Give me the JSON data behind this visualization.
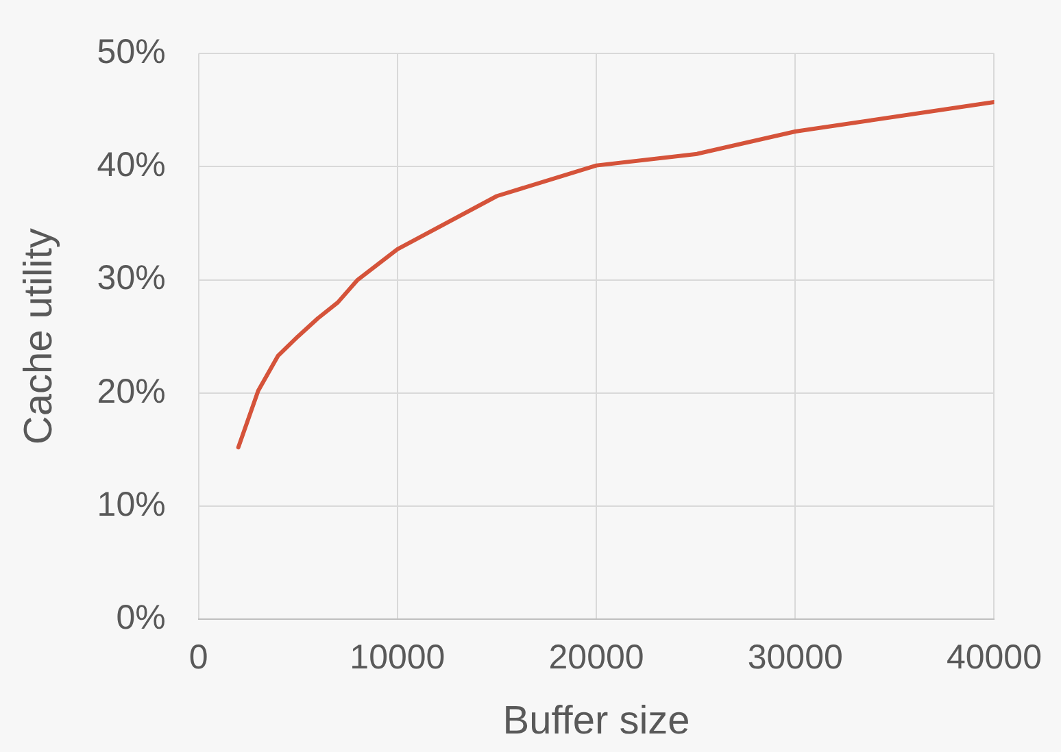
{
  "chart_data": {
    "type": "line",
    "xlabel": "Buffer size",
    "ylabel": "Cache utility",
    "xlim": [
      0,
      40000
    ],
    "xticks": [
      0,
      10000,
      20000,
      30000,
      40000
    ],
    "ylim": [
      0,
      50
    ],
    "yticks": [
      {
        "value": 0,
        "label": "0%"
      },
      {
        "value": 10,
        "label": "10%"
      },
      {
        "value": 20,
        "label": "20%"
      },
      {
        "value": 30,
        "label": "30%"
      },
      {
        "value": 40,
        "label": "40%"
      },
      {
        "value": 50,
        "label": "50%"
      }
    ],
    "grid": true,
    "legend": false,
    "marker": "none",
    "line_style": "solid",
    "series": [
      {
        "color": "#d5533a",
        "x": [
          2000,
          3000,
          4000,
          5000,
          6000,
          7000,
          8000,
          10000,
          15000,
          20000,
          25000,
          30000,
          40000
        ],
        "values": [
          15.2,
          20.2,
          23.3,
          25.0,
          26.6,
          28.0,
          30.0,
          32.7,
          37.4,
          40.1,
          41.1,
          43.1,
          45.7
        ]
      }
    ]
  }
}
